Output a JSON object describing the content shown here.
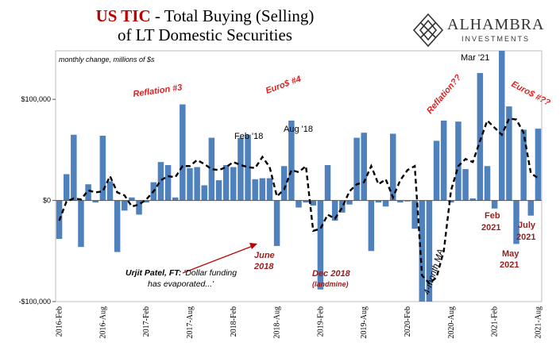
{
  "title": {
    "prefix": "US TIC",
    "rest": " - Total Buying (Selling)",
    "line2": "of LT Domestic Securities"
  },
  "logo": {
    "name": "ALHAMBRA",
    "sub": "INVESTMENTS"
  },
  "subtitle": "monthly change, millions of $s",
  "colors": {
    "bar": "#4f81bd",
    "ma": "#000000",
    "red_note": "#c00000",
    "dark_red_note": "#9b1c1c"
  },
  "chart_data": {
    "type": "bar",
    "y_ticks": [
      {
        "value": 100000,
        "label": "$100,000"
      },
      {
        "value": 0,
        "label": "$0"
      },
      {
        "value": -100000,
        "label": "-$100,000"
      }
    ],
    "ylim": [
      -100000,
      148000
    ],
    "x_ticks": [
      "2016-Feb",
      "2016-Aug",
      "2017-Feb",
      "2017-Aug",
      "2018-Feb",
      "2018-Aug",
      "2019-Feb",
      "2019-Aug",
      "2020-Feb",
      "2020-Aug",
      "2021-Feb",
      "2021-Aug"
    ],
    "grid": false,
    "series": [
      {
        "kind": "bar",
        "values": [
          -38000,
          26000,
          65000,
          -46000,
          16000,
          -2000,
          64000,
          19000,
          -51000,
          -10000,
          3000,
          -14000,
          -2000,
          18000,
          38000,
          35000,
          3000,
          95000,
          32000,
          33000,
          15000,
          62000,
          20000,
          35000,
          33000,
          62000,
          65000,
          21000,
          22000,
          22000,
          -45000,
          34000,
          79000,
          -7000,
          -2000,
          -5000,
          -88000,
          35000,
          -20000,
          -12000,
          -4000,
          62000,
          67000,
          -50000,
          -2000,
          -6000,
          66000,
          -2000,
          -1000,
          -28000,
          -105000,
          -100000,
          59000,
          79000,
          -2000,
          78000,
          31000,
          2000,
          126000,
          34000,
          -8000,
          148000,
          93000,
          -43000,
          70000,
          -15000,
          71000
        ]
      },
      {
        "name": "4-month MA",
        "kind": "line",
        "values": [
          -20000,
          -1000,
          2000,
          1000,
          10000,
          8000,
          9000,
          24000,
          8000,
          5000,
          -6000,
          -4000,
          1000,
          9000,
          20000,
          24000,
          23000,
          34000,
          34000,
          40000,
          36000,
          31000,
          30000,
          33000,
          38000,
          35000,
          33000,
          32000,
          43000,
          33000,
          4000,
          11000,
          30000,
          28000,
          34000,
          -30000,
          -28000,
          -14000,
          -18000,
          -7000,
          9000,
          16000,
          18000,
          34000,
          16000,
          21000,
          3000,
          20000,
          30000,
          34000,
          -74000,
          -82000,
          -76000,
          -50000,
          10000,
          34000,
          41000,
          38000,
          59000,
          79000,
          72000,
          65000,
          81000,
          80000,
          67000,
          27000,
          22000
        ]
      }
    ],
    "annotations": [
      {
        "text": "Reflation #3",
        "color": "red"
      },
      {
        "text": "Euro$ #4",
        "color": "red"
      },
      {
        "text": "Reflation??",
        "color": "red"
      },
      {
        "text": "Euro$ #??",
        "color": "red"
      },
      {
        "text": "Feb '18",
        "color": "black"
      },
      {
        "text": "Aug '18",
        "color": "black"
      },
      {
        "text": "Mar '21",
        "color": "black"
      },
      {
        "text": "4-month MA",
        "color": "black"
      },
      {
        "text": "June",
        "color": "darkred"
      },
      {
        "text": "2018",
        "color": "darkred"
      },
      {
        "text": "Dec 2018",
        "color": "darkred"
      },
      {
        "text": "(landmine)",
        "color": "darkred"
      },
      {
        "text": "Feb",
        "color": "darkred"
      },
      {
        "text": "2021",
        "color": "darkred"
      },
      {
        "text": "May",
        "color": "darkred"
      },
      {
        "text": "2021",
        "color": "darkred"
      },
      {
        "text": "July",
        "color": "darkred"
      },
      {
        "text": "2021",
        "color": "darkred"
      },
      {
        "text": "Urjit Patel, FT: ",
        "color": "black"
      },
      {
        "text": "'Dollar funding",
        "color": "black"
      },
      {
        "text": "has evaporated...'",
        "color": "black"
      }
    ]
  }
}
